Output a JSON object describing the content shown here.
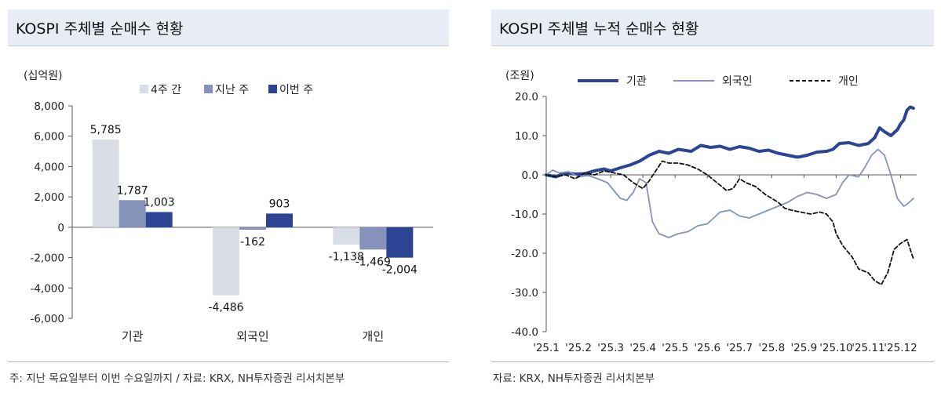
{
  "panels": {
    "left": {
      "title": "KOSPI 주체별 순매수 현황",
      "note": "주: 지난 목요일부터 이번 수요일까지 / 자료: KRX, NH투자증권 리서치본부"
    },
    "right": {
      "title": "KOSPI 주체별 누적 순매수 현황",
      "note": "자료: KRX, NH투자증권 리서치본부"
    }
  },
  "chart_data": [
    {
      "type": "bar",
      "unit_label": "(십억원)",
      "categories": [
        "기관",
        "외국인",
        "개인"
      ],
      "series": [
        {
          "name": "4주 간",
          "color": "#d9dde6",
          "values": [
            5785,
            -4486,
            -1138
          ]
        },
        {
          "name": "지난 주",
          "color": "#8592ba",
          "values": [
            1787,
            -162,
            -1469
          ]
        },
        {
          "name": "이번 주",
          "color": "#2b4594",
          "values": [
            1003,
            903,
            -2004
          ]
        }
      ],
      "data_labels": [
        [
          "5,785",
          "-4,486",
          "-1,138"
        ],
        [
          "1,787",
          "-162",
          "-1,469"
        ],
        [
          "1,003",
          "903",
          "-2,004"
        ]
      ],
      "ylim": [
        -6000,
        8000
      ],
      "yticks": [
        8000,
        6000,
        4000,
        2000,
        0,
        -2000,
        -4000,
        -6000
      ],
      "ytick_labels": [
        "8,000",
        "6,000",
        "4,000",
        "2,000",
        "0",
        "-2,000",
        "-4,000",
        "-6,000"
      ],
      "legend": "top"
    },
    {
      "type": "line",
      "unit_label": "(조원)",
      "x_labels": [
        "'25.1",
        "'25.2",
        "'25.3",
        "'25.4",
        "'25.5",
        "'25.6",
        "'25.7",
        "'25.8",
        "'25.9",
        "'25.10",
        "'25.11",
        "'25.12"
      ],
      "ylim": [
        -40,
        20
      ],
      "yticks": [
        20,
        10,
        0,
        -10,
        -20,
        -30,
        -40
      ],
      "ytick_labels": [
        "20.0",
        "10.0",
        "0.0",
        "-10.0",
        "-20.0",
        "-30.0",
        "-40.0"
      ],
      "legend": "top",
      "series": [
        {
          "name": "기관",
          "color": "#2b4594",
          "style": "solid-thick",
          "points": [
            [
              0,
              0
            ],
            [
              0.3,
              -0.5
            ],
            [
              0.6,
              0.5
            ],
            [
              0.9,
              0.2
            ],
            [
              1.2,
              0.3
            ],
            [
              1.4,
              0.8
            ],
            [
              1.6,
              1.2
            ],
            [
              1.8,
              1.5
            ],
            [
              2.0,
              1.0
            ],
            [
              2.3,
              1.8
            ],
            [
              2.6,
              2.5
            ],
            [
              2.9,
              3.5
            ],
            [
              3.2,
              5.0
            ],
            [
              3.5,
              6.0
            ],
            [
              3.8,
              5.5
            ],
            [
              4.1,
              6.5
            ],
            [
              4.5,
              6.0
            ],
            [
              4.8,
              7.5
            ],
            [
              5.1,
              7.0
            ],
            [
              5.4,
              7.3
            ],
            [
              5.7,
              6.5
            ],
            [
              6.0,
              7.2
            ],
            [
              6.3,
              6.8
            ],
            [
              6.6,
              6.0
            ],
            [
              6.9,
              6.3
            ],
            [
              7.2,
              5.5
            ],
            [
              7.5,
              5.0
            ],
            [
              7.8,
              4.5
            ],
            [
              8.1,
              5.0
            ],
            [
              8.4,
              5.8
            ],
            [
              8.7,
              6.0
            ],
            [
              8.9,
              6.5
            ],
            [
              9.1,
              8.0
            ],
            [
              9.4,
              8.2
            ],
            [
              9.7,
              7.5
            ],
            [
              10.0,
              8.0
            ],
            [
              10.2,
              9.5
            ],
            [
              10.35,
              12.0
            ],
            [
              10.5,
              11.0
            ],
            [
              10.7,
              10.0
            ],
            [
              10.9,
              11.5
            ],
            [
              11.0,
              13.0
            ],
            [
              11.1,
              14.0
            ],
            [
              11.2,
              16.5
            ],
            [
              11.3,
              17.3
            ],
            [
              11.4,
              17.0
            ]
          ]
        },
        {
          "name": "외국인",
          "color": "#8592ba",
          "style": "solid-thin",
          "points": [
            [
              0,
              0
            ],
            [
              0.2,
              1.2
            ],
            [
              0.4,
              0.5
            ],
            [
              0.7,
              0.8
            ],
            [
              1.0,
              -0.5
            ],
            [
              1.3,
              -0.2
            ],
            [
              1.6,
              -1.0
            ],
            [
              1.9,
              -2.0
            ],
            [
              2.1,
              -4.0
            ],
            [
              2.3,
              -6.0
            ],
            [
              2.5,
              -6.5
            ],
            [
              2.7,
              -4.5
            ],
            [
              2.9,
              -1.0
            ],
            [
              3.1,
              -2.0
            ],
            [
              3.2,
              -7.0
            ],
            [
              3.3,
              -12.0
            ],
            [
              3.5,
              -15.0
            ],
            [
              3.8,
              -16.0
            ],
            [
              4.1,
              -15.0
            ],
            [
              4.4,
              -14.5
            ],
            [
              4.7,
              -13.0
            ],
            [
              5.0,
              -12.5
            ],
            [
              5.2,
              -11.0
            ],
            [
              5.4,
              -9.5
            ],
            [
              5.7,
              -9.0
            ],
            [
              6.0,
              -10.5
            ],
            [
              6.3,
              -11.0
            ],
            [
              6.6,
              -10.0
            ],
            [
              6.9,
              -9.0
            ],
            [
              7.2,
              -8.0
            ],
            [
              7.5,
              -7.0
            ],
            [
              7.8,
              -5.5
            ],
            [
              8.1,
              -4.5
            ],
            [
              8.4,
              -5.0
            ],
            [
              8.7,
              -6.0
            ],
            [
              9.0,
              -5.0
            ],
            [
              9.2,
              -2.0
            ],
            [
              9.4,
              0.0
            ],
            [
              9.7,
              -0.5
            ],
            [
              9.9,
              2.0
            ],
            [
              10.1,
              5.0
            ],
            [
              10.3,
              6.5
            ],
            [
              10.5,
              5.0
            ],
            [
              10.7,
              0.0
            ],
            [
              10.9,
              -6.0
            ],
            [
              11.1,
              -8.0
            ],
            [
              11.2,
              -7.5
            ],
            [
              11.4,
              -6.0
            ]
          ]
        },
        {
          "name": "개인",
          "color": "#111111",
          "style": "dashed",
          "points": [
            [
              0,
              0
            ],
            [
              0.3,
              -0.5
            ],
            [
              0.6,
              0.0
            ],
            [
              0.9,
              -1.0
            ],
            [
              1.2,
              0.5
            ],
            [
              1.5,
              0.0
            ],
            [
              1.8,
              1.0
            ],
            [
              2.1,
              0.5
            ],
            [
              2.4,
              0.0
            ],
            [
              2.7,
              -2.0
            ],
            [
              3.0,
              -3.5
            ],
            [
              3.2,
              -1.5
            ],
            [
              3.4,
              1.0
            ],
            [
              3.6,
              3.5
            ],
            [
              3.8,
              3.0
            ],
            [
              4.1,
              3.0
            ],
            [
              4.4,
              2.5
            ],
            [
              4.7,
              1.5
            ],
            [
              5.0,
              0.0
            ],
            [
              5.3,
              -2.0
            ],
            [
              5.6,
              -4.0
            ],
            [
              5.8,
              -3.5
            ],
            [
              6.0,
              -1.0
            ],
            [
              6.2,
              -2.0
            ],
            [
              6.5,
              -3.0
            ],
            [
              6.8,
              -5.0
            ],
            [
              7.0,
              -6.0
            ],
            [
              7.2,
              -7.0
            ],
            [
              7.4,
              -8.5
            ],
            [
              7.6,
              -9.0
            ],
            [
              7.9,
              -9.5
            ],
            [
              8.2,
              -10.0
            ],
            [
              8.5,
              -9.5
            ],
            [
              8.7,
              -10.0
            ],
            [
              8.9,
              -12.0
            ],
            [
              9.0,
              -15.0
            ],
            [
              9.2,
              -18.0
            ],
            [
              9.5,
              -21.0
            ],
            [
              9.7,
              -24.0
            ],
            [
              10.0,
              -25.0
            ],
            [
              10.2,
              -27.0
            ],
            [
              10.4,
              -28.0
            ],
            [
              10.6,
              -25.0
            ],
            [
              10.8,
              -19.0
            ],
            [
              11.0,
              -17.5
            ],
            [
              11.2,
              -16.5
            ],
            [
              11.3,
              -19.0
            ],
            [
              11.4,
              -21.5
            ]
          ]
        }
      ]
    }
  ]
}
